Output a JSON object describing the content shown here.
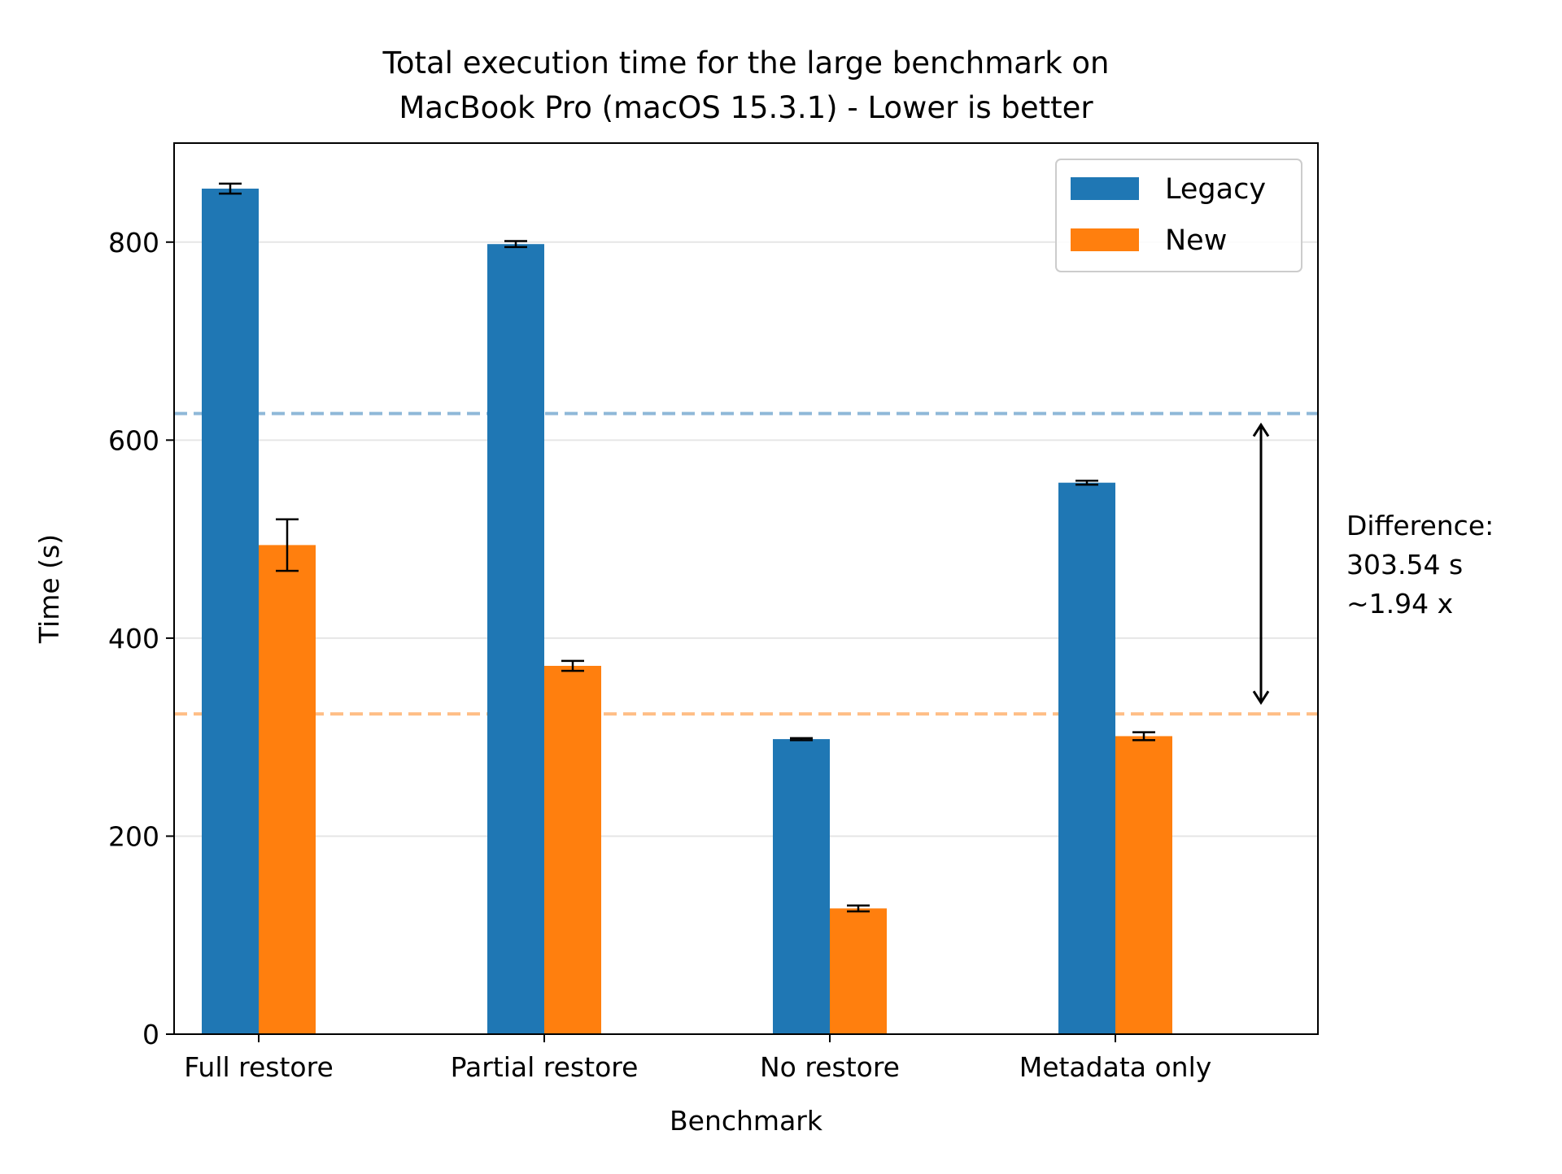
{
  "chart_data": {
    "type": "bar",
    "title": "Total execution time for the large benchmark on\nMacBook Pro (macOS 15.3.1) - Lower is better",
    "xlabel": "Benchmark",
    "ylabel": "Time (s)",
    "ylim": [
      0,
      900
    ],
    "yticks": [
      0,
      200,
      400,
      600,
      800
    ],
    "grid": "horizontal",
    "legend_position": "top-right",
    "categories": [
      "Full restore",
      "Partial restore",
      "No restore",
      "Metadata only"
    ],
    "series": [
      {
        "name": "Legacy",
        "color": "#1f77b4",
        "values": [
          854,
          798,
          298,
          557
        ],
        "errors": [
          5,
          3,
          1,
          2
        ]
      },
      {
        "name": "New",
        "color": "#ff7f0e",
        "values": [
          494,
          372,
          127,
          301
        ],
        "errors": [
          26,
          5,
          3,
          4
        ]
      }
    ],
    "reference_lines": [
      {
        "series": "Legacy",
        "value": 626.9,
        "color": "#8fb8d8"
      },
      {
        "series": "New",
        "value": 323.4,
        "color": "#ffbe86"
      }
    ],
    "annotation": {
      "lines": [
        "Difference:",
        "303.54 s",
        "~1.94 x"
      ],
      "from": 626.9,
      "to": 323.4
    }
  }
}
